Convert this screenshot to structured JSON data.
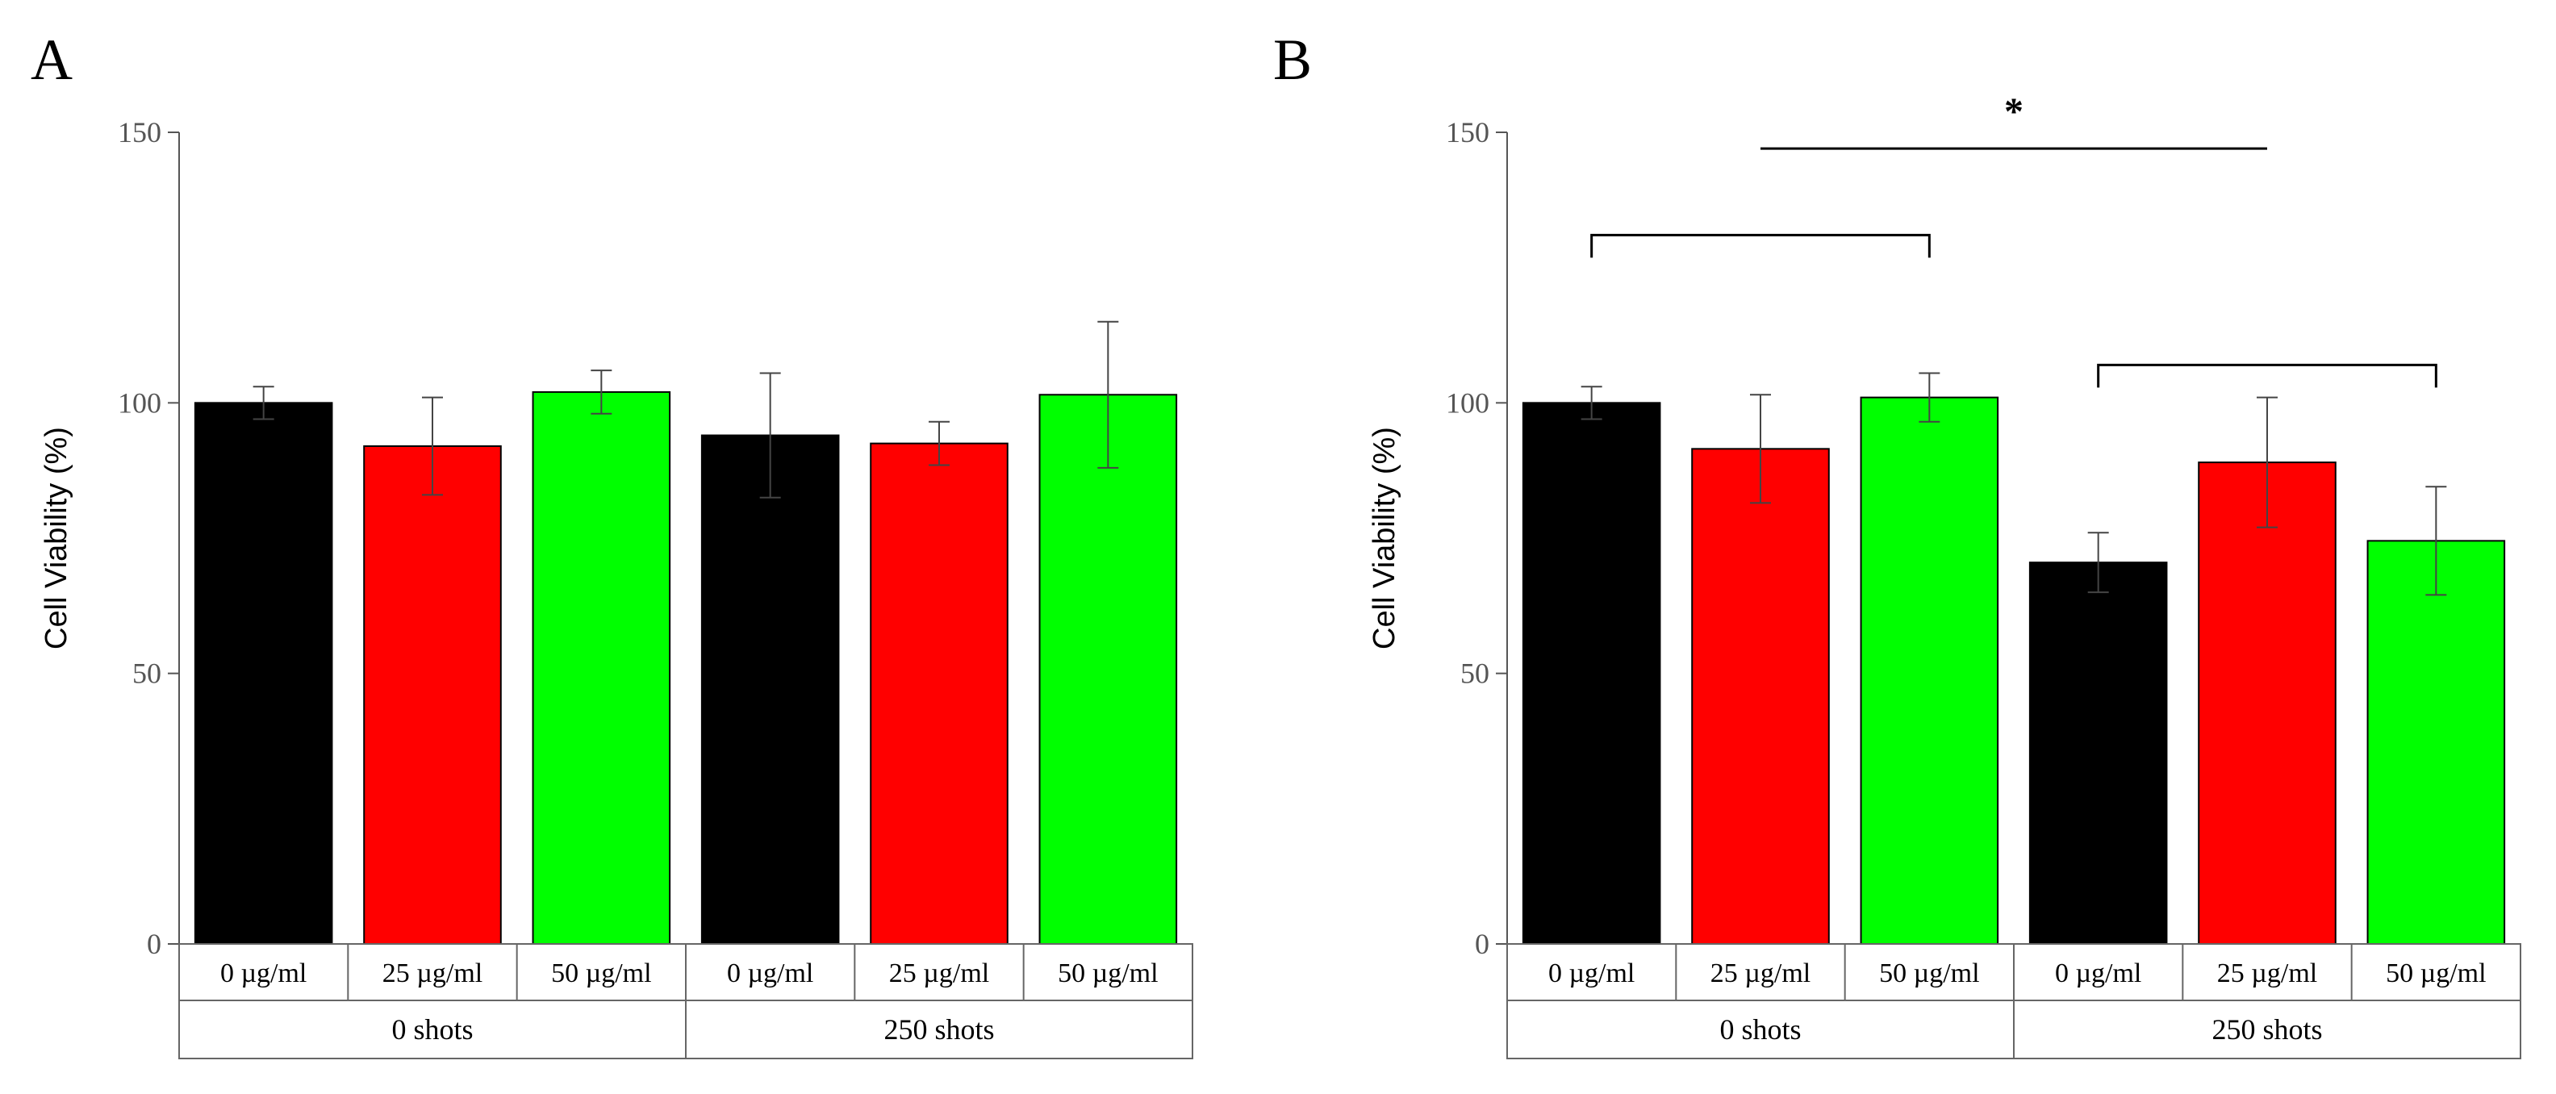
{
  "chart_data": [
    {
      "panel": "A",
      "type": "bar",
      "ylabel": "Cell Viability (%)",
      "ylim": [
        0,
        150
      ],
      "yticks": [
        0,
        50,
        100,
        150
      ],
      "groups": [
        {
          "name": "0 shots",
          "categories": [
            "0 µg/ml",
            "25 µg/ml",
            "50 µg/ml"
          ]
        },
        {
          "name": "250 shots",
          "categories": [
            "0 µg/ml",
            "25 µg/ml",
            "50 µg/ml"
          ]
        }
      ],
      "values": [
        100,
        92,
        102,
        94,
        92.5,
        101.5
      ],
      "errors": [
        3,
        9,
        4,
        11.5,
        4,
        13.5
      ],
      "colors": [
        "#000000",
        "#ff0000",
        "#00ff00",
        "#000000",
        "#ff0000",
        "#00ff00"
      ],
      "annotations": []
    },
    {
      "panel": "B",
      "type": "bar",
      "ylabel": "Cell Viability (%)",
      "ylim": [
        0,
        150
      ],
      "yticks": [
        0,
        50,
        100,
        150
      ],
      "groups": [
        {
          "name": "0 shots",
          "categories": [
            "0 µg/ml",
            "25 µg/ml",
            "50 µg/ml"
          ]
        },
        {
          "name": "250 shots",
          "categories": [
            "0 µg/ml",
            "25 µg/ml",
            "50 µg/ml"
          ]
        }
      ],
      "values": [
        100,
        91.5,
        101,
        70.5,
        89,
        74.5
      ],
      "errors": [
        3,
        10,
        4.5,
        5.5,
        12,
        10
      ],
      "colors": [
        "#000000",
        "#ff0000",
        "#00ff00",
        "#000000",
        "#ff0000",
        "#00ff00"
      ],
      "annotations": [
        {
          "kind": "bracket",
          "from_bar": 0,
          "to_bar": 2,
          "y": 131
        },
        {
          "kind": "bracket",
          "from_bar": 3,
          "to_bar": 5,
          "y": 107
        },
        {
          "kind": "line",
          "from_bar": 1,
          "to_bar": 4,
          "y": 147,
          "label": "*"
        }
      ]
    }
  ]
}
